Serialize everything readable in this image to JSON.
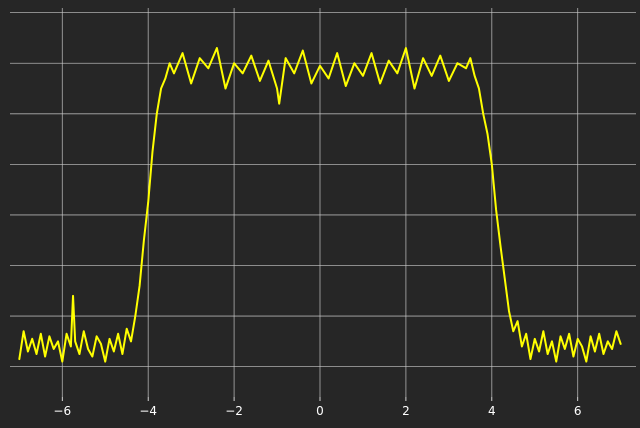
{
  "chart_data": {
    "type": "line",
    "title": "",
    "xlabel": "",
    "ylabel": "",
    "xlim": [
      -7.45,
      7.45
    ],
    "ylim": [
      -0.12,
      1.45
    ],
    "grid": true,
    "background": "#262626",
    "grid_color": "#c8c8c8",
    "text_color": "#ffffff",
    "x_ticks": [
      -6,
      -4,
      -2,
      0,
      2,
      4,
      6
    ],
    "x_tick_labels": [
      "−6",
      "−4",
      "−2",
      "0",
      "2",
      "4",
      "6"
    ],
    "y_ticks": [
      0.0,
      0.2,
      0.4,
      0.6,
      0.8,
      1.0,
      1.2,
      1.4
    ],
    "y_tick_labels": [
      "",
      "",
      "",
      "",
      "",
      "",
      "",
      ""
    ],
    "series": [
      {
        "color": "#ffff00",
        "x": [
          -7.0,
          -6.9,
          -6.8,
          -6.7,
          -6.6,
          -6.5,
          -6.4,
          -6.3,
          -6.2,
          -6.1,
          -6.0,
          -5.9,
          -5.8,
          -5.75,
          -5.7,
          -5.6,
          -5.5,
          -5.4,
          -5.3,
          -5.2,
          -5.1,
          -5.0,
          -4.9,
          -4.8,
          -4.7,
          -4.6,
          -4.5,
          -4.4,
          -4.3,
          -4.2,
          -4.1,
          -4.0,
          -3.9,
          -3.8,
          -3.7,
          -3.6,
          -3.5,
          -3.4,
          -3.2,
          -3.0,
          -2.8,
          -2.6,
          -2.4,
          -2.2,
          -2.0,
          -1.8,
          -1.6,
          -1.4,
          -1.2,
          -1.0,
          -0.95,
          -0.8,
          -0.6,
          -0.4,
          -0.2,
          0.0,
          0.2,
          0.4,
          0.6,
          0.8,
          1.0,
          1.2,
          1.4,
          1.6,
          1.8,
          2.0,
          2.2,
          2.4,
          2.6,
          2.8,
          3.0,
          3.2,
          3.4,
          3.5,
          3.6,
          3.7,
          3.8,
          3.9,
          4.0,
          4.1,
          4.2,
          4.3,
          4.4,
          4.5,
          4.6,
          4.7,
          4.8,
          4.9,
          5.0,
          5.1,
          5.2,
          5.3,
          5.4,
          5.5,
          5.6,
          5.7,
          5.8,
          5.9,
          6.0,
          6.1,
          6.2,
          6.3,
          6.4,
          6.5,
          6.6,
          6.7,
          6.8,
          6.9,
          7.0
        ],
        "y": [
          0.03,
          0.14,
          0.06,
          0.11,
          0.05,
          0.13,
          0.04,
          0.12,
          0.07,
          0.1,
          0.02,
          0.13,
          0.08,
          0.28,
          0.1,
          0.05,
          0.14,
          0.07,
          0.04,
          0.12,
          0.09,
          0.02,
          0.11,
          0.06,
          0.13,
          0.05,
          0.15,
          0.1,
          0.2,
          0.32,
          0.5,
          0.65,
          0.85,
          1.0,
          1.1,
          1.14,
          1.2,
          1.16,
          1.24,
          1.12,
          1.22,
          1.18,
          1.26,
          1.1,
          1.2,
          1.16,
          1.23,
          1.13,
          1.21,
          1.1,
          1.04,
          1.22,
          1.16,
          1.25,
          1.12,
          1.19,
          1.14,
          1.24,
          1.11,
          1.2,
          1.15,
          1.24,
          1.12,
          1.21,
          1.16,
          1.26,
          1.1,
          1.22,
          1.15,
          1.23,
          1.13,
          1.2,
          1.18,
          1.22,
          1.15,
          1.1,
          1.0,
          0.92,
          0.8,
          0.62,
          0.48,
          0.35,
          0.22,
          0.14,
          0.18,
          0.08,
          0.13,
          0.03,
          0.11,
          0.06,
          0.14,
          0.05,
          0.1,
          0.02,
          0.12,
          0.07,
          0.13,
          0.04,
          0.11,
          0.08,
          0.02,
          0.12,
          0.06,
          0.13,
          0.05,
          0.1,
          0.07,
          0.14,
          0.09
        ]
      }
    ]
  }
}
